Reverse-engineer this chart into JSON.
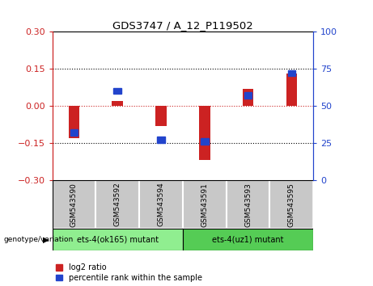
{
  "title": "GDS3747 / A_12_P119502",
  "categories": [
    "GSM543590",
    "GSM543592",
    "GSM543594",
    "GSM543591",
    "GSM543593",
    "GSM543595"
  ],
  "log2_ratio": [
    -0.13,
    0.02,
    -0.08,
    -0.22,
    0.07,
    0.13
  ],
  "percentile_rank": [
    32,
    60,
    27,
    26,
    57,
    72
  ],
  "ylim_left": [
    -0.3,
    0.3
  ],
  "ylim_right": [
    0,
    100
  ],
  "yticks_left": [
    -0.3,
    -0.15,
    0,
    0.15,
    0.3
  ],
  "yticks_right": [
    0,
    25,
    50,
    75,
    100
  ],
  "red_color": "#cc2222",
  "blue_color": "#2244cc",
  "bg_label1": "#c8c8c8",
  "bg_label2_1": "#90ee90",
  "bg_label2_2": "#55cc55",
  "group1_label": "ets-4(ok165) mutant",
  "group2_label": "ets-4(uz1) mutant",
  "genotype_label": "genotype/variation",
  "legend_red": "log2 ratio",
  "legend_blue": "percentile rank within the sample",
  "group1_indices": [
    0,
    1,
    2
  ],
  "group2_indices": [
    3,
    4,
    5
  ],
  "bar_width": 0.25,
  "blue_bar_width": 0.18,
  "blue_bar_height": 0.025
}
